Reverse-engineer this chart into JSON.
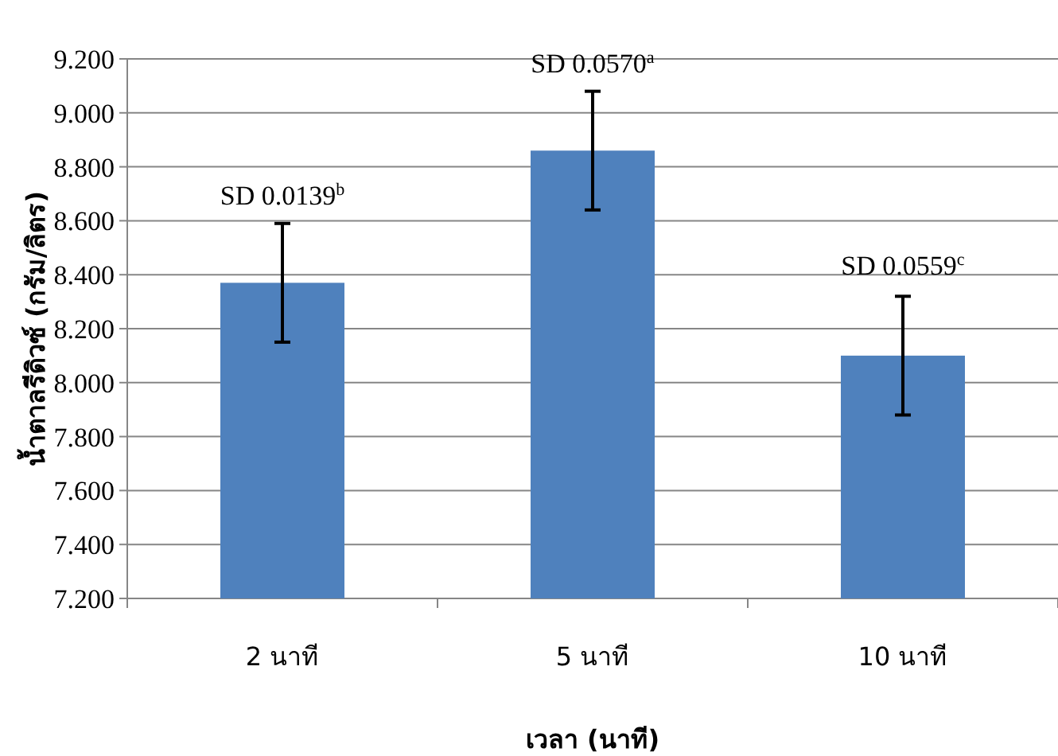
{
  "chart_data": {
    "type": "bar",
    "xlabel": "เวลา (นาที)",
    "ylabel": "น้ำตาลรีดิวซ์ (กรัม/ลิตร)",
    "categories": [
      "2 นาที",
      "5 นาที",
      "10 นาที"
    ],
    "values": [
      8.37,
      8.86,
      8.1
    ],
    "errors": [
      0.22,
      0.22,
      0.22
    ],
    "color": "#4f81bd",
    "ylim": [
      7.2,
      9.2
    ],
    "yticks": [
      {
        "value": 7.2,
        "label": "7.200"
      },
      {
        "value": 7.4,
        "label": "7.400"
      },
      {
        "value": 7.6,
        "label": "7.600"
      },
      {
        "value": 7.8,
        "label": "7.800"
      },
      {
        "value": 8.0,
        "label": "8.000"
      },
      {
        "value": 8.2,
        "label": "8.200"
      },
      {
        "value": 8.4,
        "label": "8.400"
      },
      {
        "value": 8.6,
        "label": "8.600"
      },
      {
        "value": 8.8,
        "label": "8.800"
      },
      {
        "value": 9.0,
        "label": "9.000"
      },
      {
        "value": 9.2,
        "label": "9.200"
      }
    ],
    "grid": "y",
    "annotations": [
      {
        "text": "SD 0.0139$^{b}$",
        "x": "2 นาที",
        "y": 8.59
      },
      {
        "text": "SD 0.0570$^{a}$",
        "x": "5 นาที",
        "y": 9.08
      },
      {
        "text": "SD 0.0559$^{c}$",
        "x": "10 นาที",
        "y": 8.33
      }
    ]
  }
}
